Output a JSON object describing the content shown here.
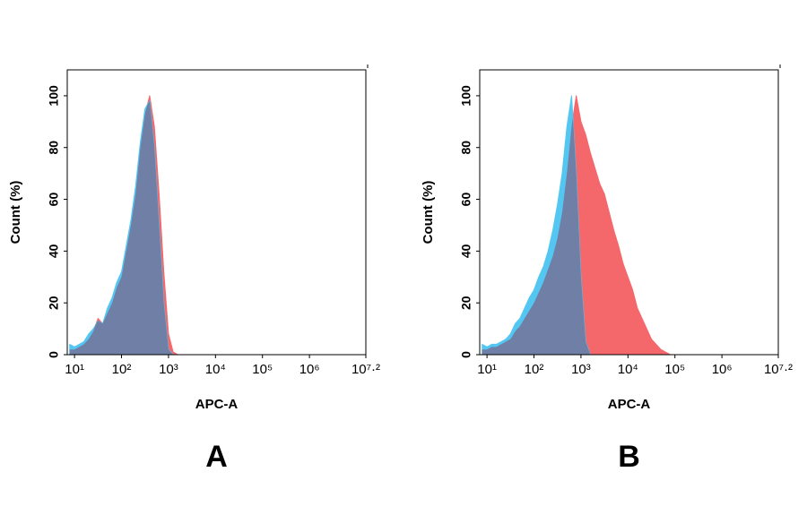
{
  "chart_data": [
    {
      "type": "area",
      "panel_label": "A",
      "x_label": "APC-A",
      "y_label": "Count (%)",
      "xlog": true,
      "xlim": [
        7,
        15848932
      ],
      "ylim": [
        0,
        110
      ],
      "xticks": [
        {
          "value": 10,
          "label": "10¹"
        },
        {
          "value": 100,
          "label": "10²"
        },
        {
          "value": 1000,
          "label": "10³"
        },
        {
          "value": 10000,
          "label": "10⁴"
        },
        {
          "value": 100000,
          "label": "10⁵"
        },
        {
          "value": 1000000,
          "label": "10⁶"
        },
        {
          "value": 15848932,
          "label": "10⁷·²"
        }
      ],
      "yticks": [
        0,
        20,
        40,
        60,
        80,
        100
      ],
      "overlap_color": "#6f7fa6",
      "x": [
        7.9,
        10,
        12.6,
        15.8,
        20,
        25.1,
        31.6,
        39.8,
        50.1,
        63.1,
        79.4,
        100,
        125.9,
        158.5,
        199.5,
        251.2,
        316.2,
        398.1,
        501.2,
        631,
        794.3,
        1000,
        1258.9,
        1584.9,
        1995.3
      ],
      "series": [
        {
          "color": "#f4676b",
          "values": [
            2,
            2,
            3,
            4,
            6,
            9,
            14,
            12,
            16,
            20,
            26,
            30,
            40,
            50,
            62,
            80,
            93,
            100,
            88,
            62,
            32,
            8,
            1,
            0,
            0
          ]
        },
        {
          "color": "#54c6f2",
          "values": [
            4,
            3,
            4,
            5,
            8,
            10,
            13,
            12,
            18,
            22,
            28,
            32,
            42,
            52,
            65,
            82,
            95,
            98,
            80,
            50,
            20,
            2,
            0,
            0,
            0
          ]
        }
      ]
    },
    {
      "type": "area",
      "panel_label": "B",
      "x_label": "APC-A",
      "y_label": "Count (%)",
      "xlog": true,
      "xlim": [
        7,
        15848932
      ],
      "ylim": [
        0,
        110
      ],
      "xticks": [
        {
          "value": 10,
          "label": "10¹"
        },
        {
          "value": 100,
          "label": "10²"
        },
        {
          "value": 1000,
          "label": "10³"
        },
        {
          "value": 10000,
          "label": "10⁴"
        },
        {
          "value": 100000,
          "label": "10⁵"
        },
        {
          "value": 1000000,
          "label": "10⁶"
        },
        {
          "value": 15848932,
          "label": "10⁷·²"
        }
      ],
      "yticks": [
        0,
        20,
        40,
        60,
        80,
        100
      ],
      "overlap_color": "#6f7fa6",
      "x": [
        7.9,
        10,
        12.6,
        15.8,
        20,
        25.1,
        31.6,
        39.8,
        50.1,
        63.1,
        79.4,
        100,
        125.9,
        158.5,
        199.5,
        251.2,
        316.2,
        398.1,
        501.2,
        631,
        794.3,
        1000,
        1258.9,
        1584.9,
        1995.3,
        2511.9,
        3162.3,
        3981.1,
        5011.9,
        6309.6,
        7943.3,
        10000,
        12589.3,
        15848.9,
        19952.6,
        25118.9,
        31622.8,
        39810.7,
        50118.7,
        63095.7,
        79432.8,
        100000
      ],
      "series": [
        {
          "color": "#f4676b",
          "values": [
            2,
            2,
            3,
            3,
            4,
            5,
            6,
            9,
            11,
            14,
            17,
            20,
            24,
            28,
            33,
            38,
            45,
            55,
            70,
            88,
            100,
            90,
            85,
            78,
            72,
            66,
            62,
            55,
            48,
            42,
            35,
            30,
            25,
            18,
            14,
            10,
            6,
            4,
            2,
            1,
            0,
            0
          ]
        },
        {
          "color": "#54c6f2",
          "values": [
            4,
            3,
            4,
            4,
            5,
            6,
            8,
            12,
            14,
            18,
            22,
            25,
            30,
            34,
            40,
            48,
            58,
            70,
            88,
            100,
            70,
            30,
            5,
            0,
            0,
            0,
            0,
            0,
            0,
            0,
            0,
            0,
            0,
            0,
            0,
            0,
            0,
            0,
            0,
            0,
            0,
            0
          ]
        }
      ]
    }
  ]
}
